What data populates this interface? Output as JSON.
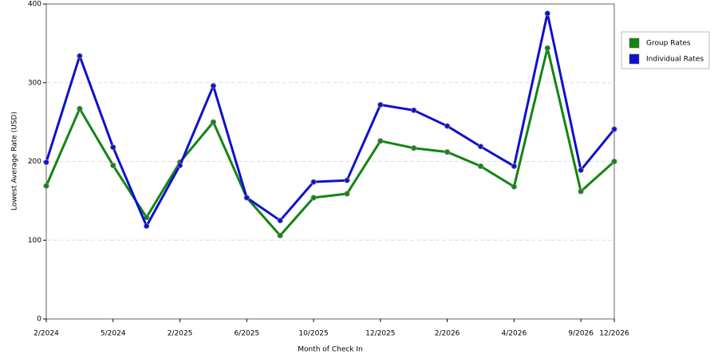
{
  "chart_data": {
    "type": "line",
    "x_label": "Month of Check In",
    "y_label": "Lowest Average Rate (USD)",
    "categories": [
      "2/2024",
      null,
      "5/2024",
      null,
      "2/2025",
      null,
      "6/2025",
      null,
      "10/2025",
      null,
      "12/2025",
      null,
      "2/2026",
      null,
      "4/2026",
      null,
      "9/2026",
      "12/2026"
    ],
    "series": [
      {
        "name": "Group Rates",
        "color": "#138513",
        "values": [
          169,
          267,
          195,
          129,
          199,
          250,
          154,
          106,
          154,
          159,
          226,
          217,
          212,
          194,
          168,
          344,
          162,
          200
        ]
      },
      {
        "name": "Individual Rates",
        "color": "#1010cc",
        "values": [
          199,
          334,
          218,
          118,
          195,
          296,
          154,
          125,
          174,
          176,
          272,
          265,
          245,
          219,
          194,
          388,
          189,
          241
        ]
      }
    ],
    "ylim": [
      0,
      400
    ],
    "yticks": [
      0,
      100,
      200,
      300,
      400
    ],
    "grid": true,
    "legend": "right"
  }
}
